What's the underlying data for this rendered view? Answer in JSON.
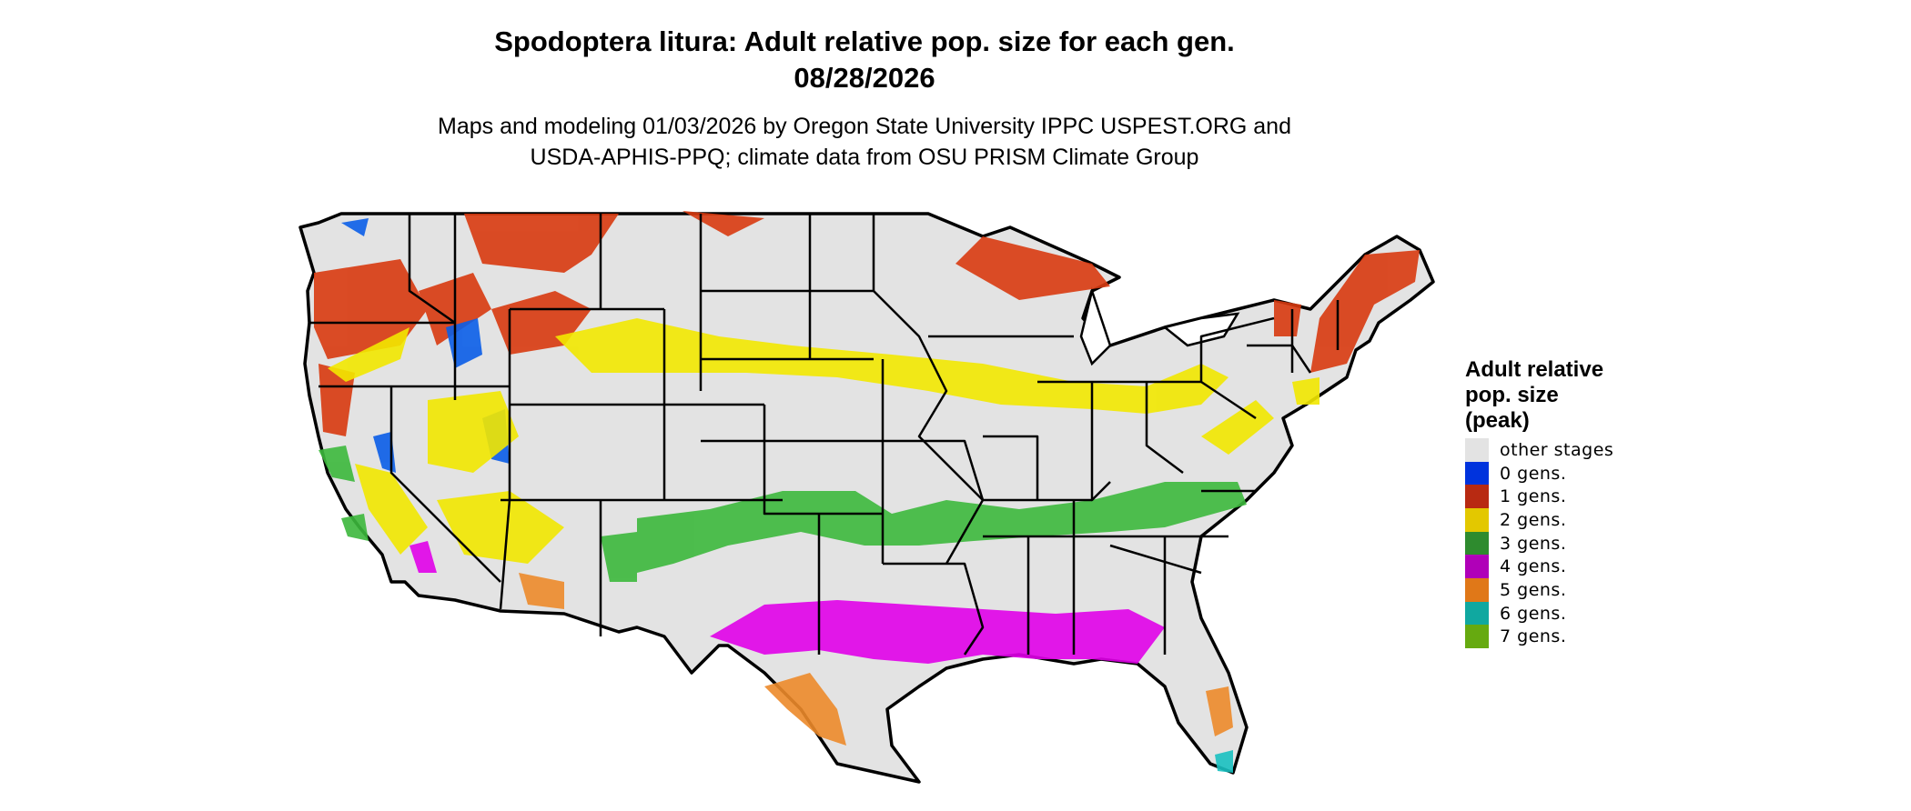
{
  "header": {
    "title_line1": "Spodoptera litura: Adult relative pop. size for each gen.",
    "title_line2": "08/28/2026",
    "subtitle_line1": "Maps and modeling 01/03/2026 by Oregon State University IPPC USPEST.ORG and",
    "subtitle_line2": "USDA-APHIS-PPQ; climate data from OSU PRISM Climate Group"
  },
  "legend": {
    "title_line1": "Adult relative",
    "title_line2": "pop. size",
    "title_line3": "(peak)",
    "items": [
      {
        "label": "other stages",
        "color": "#e3e3e3"
      },
      {
        "label": "0 gens.",
        "color": "#0033dd"
      },
      {
        "label": "1 gens.",
        "color": "#b82a12"
      },
      {
        "label": "2 gens.",
        "color": "#e3c800"
      },
      {
        "label": "3 gens.",
        "color": "#2e8b2e"
      },
      {
        "label": "4 gens.",
        "color": "#b000b8"
      },
      {
        "label": "5 gens.",
        "color": "#e07818"
      },
      {
        "label": "6 gens.",
        "color": "#10a8a0"
      },
      {
        "label": "7 gens.",
        "color": "#66aa10"
      }
    ]
  },
  "map_colors": {
    "land": "#e3e3e3",
    "border": "#000000",
    "gen0": "#0a5ee8",
    "gen1": "#d83a10",
    "gen2": "#f2e800",
    "gen3": "#3cb83c",
    "gen4": "#e000e8",
    "gen5": "#ec8a2a",
    "gen6": "#18c0c0"
  }
}
